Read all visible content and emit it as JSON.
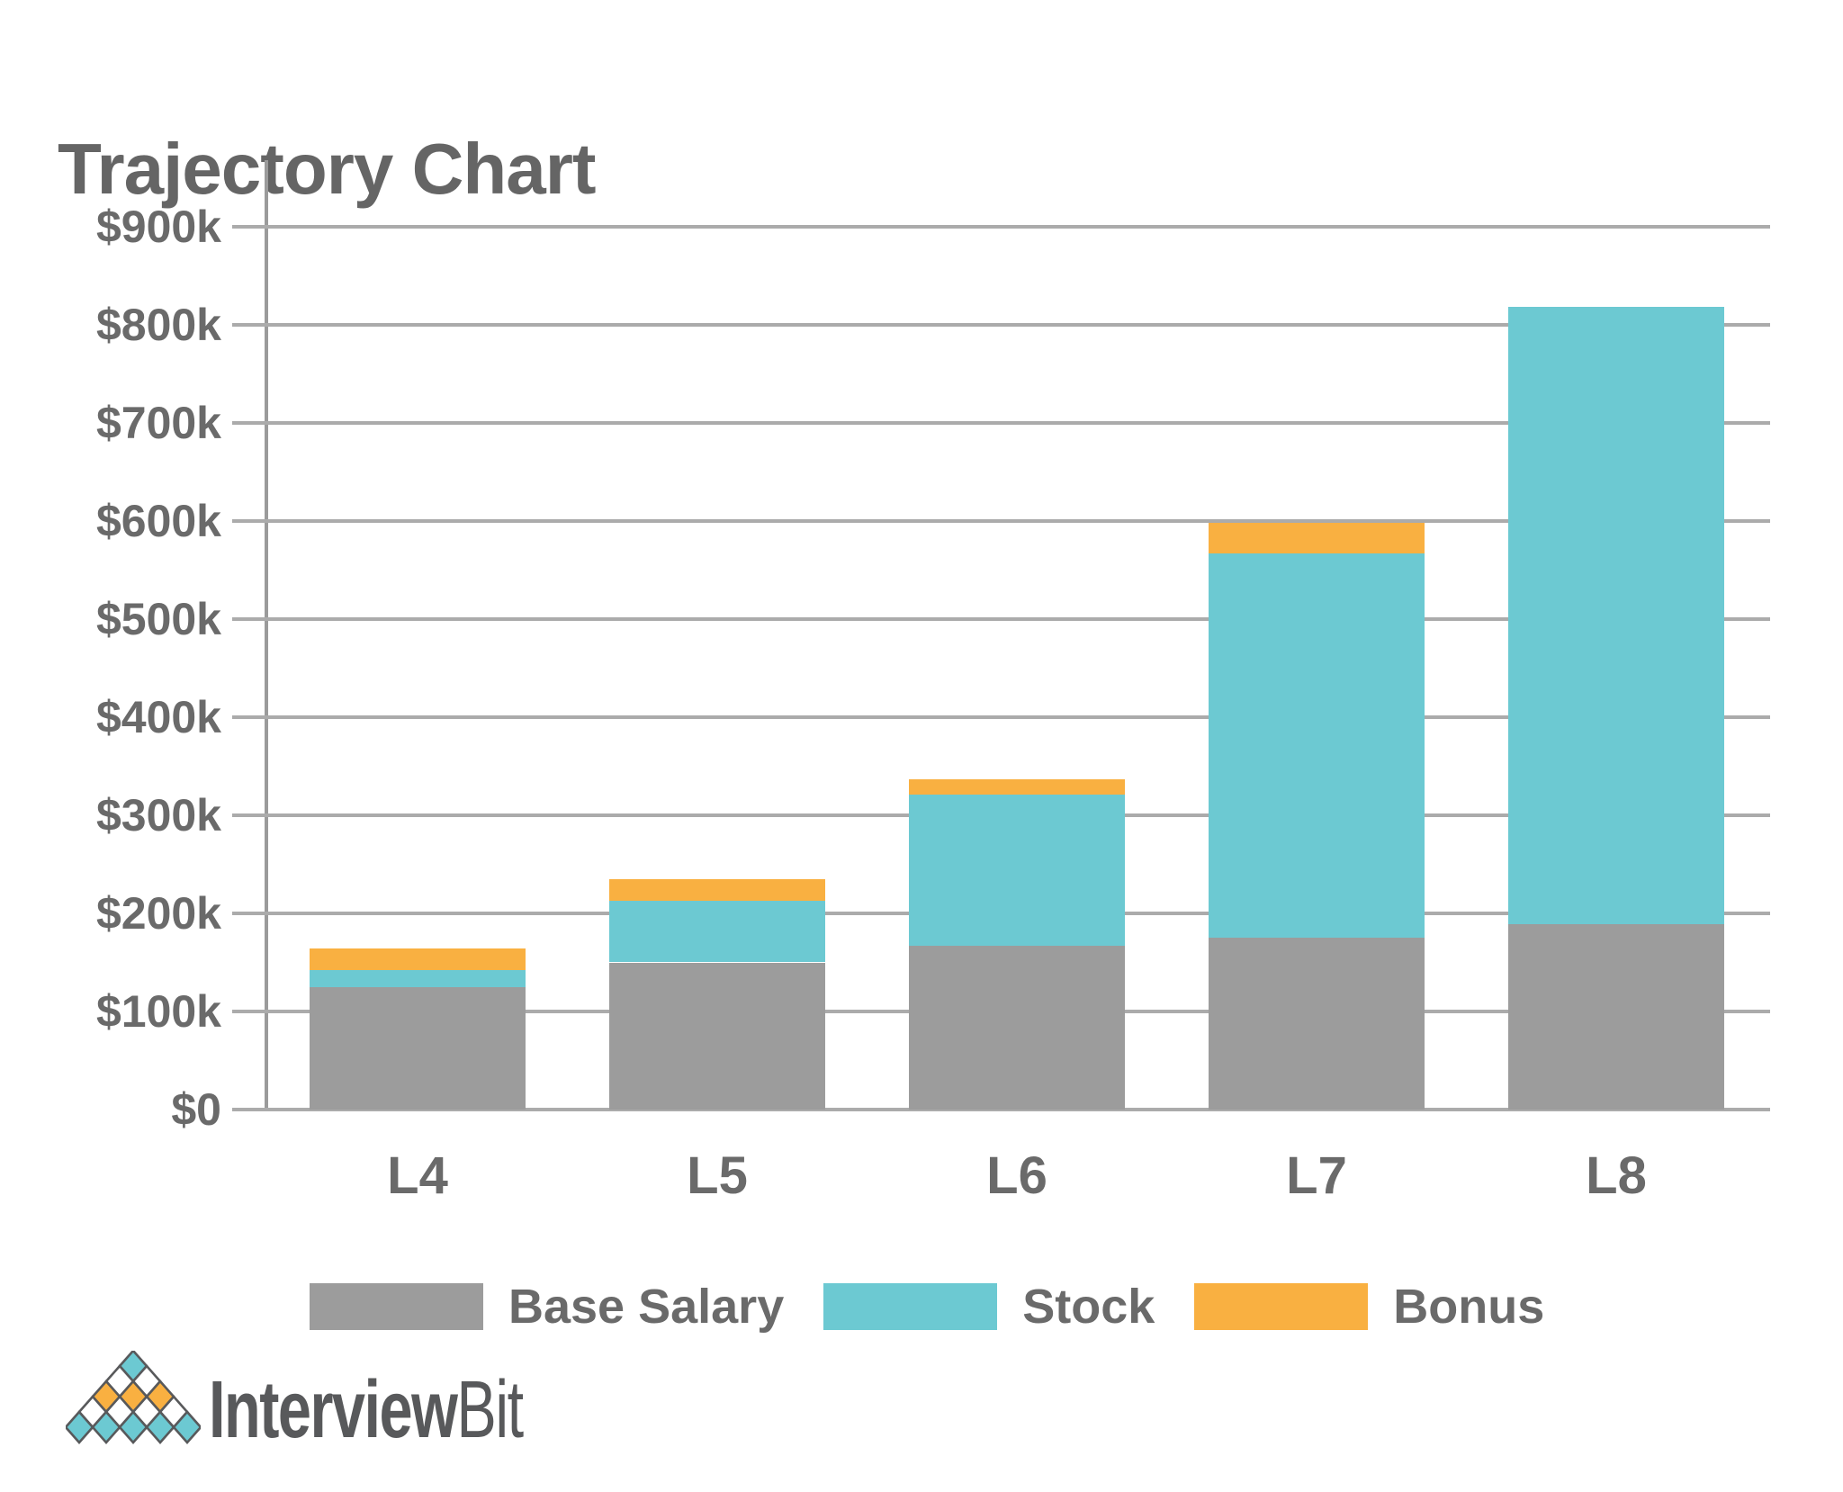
{
  "page": {
    "title": "Trajectory Chart"
  },
  "colors": {
    "base": "#9c9c9c",
    "stock": "#6cc9d2",
    "bonus": "#f9b041",
    "gridline": "#ababab",
    "axis": "#9b9b9b",
    "text": "#6a6a6a",
    "title": "#656565",
    "logo": "#58595b"
  },
  "chart_data": {
    "type": "bar",
    "stacked": true,
    "title": "Trajectory Chart",
    "xlabel": "",
    "ylabel": "",
    "unit": "USD thousands per year",
    "categories": [
      "L4",
      "L5",
      "L6",
      "L7",
      "L8"
    ],
    "series": [
      {
        "name": "Base Salary",
        "color": "#9c9c9c",
        "values": [
          125,
          150,
          167,
          175,
          189
        ]
      },
      {
        "name": "Stock",
        "color": "#6cc9d2",
        "values": [
          17,
          63,
          154,
          392,
          629
        ]
      },
      {
        "name": "Bonus",
        "color": "#f9b041",
        "values": [
          22,
          22,
          16,
          31,
          0
        ]
      }
    ],
    "totals_k": [
      164,
      235,
      337,
      598,
      818
    ],
    "y_axis": {
      "min": 0,
      "max": 900,
      "grid": true,
      "ticks": [
        {
          "value": 900,
          "label": "$900k"
        },
        {
          "value": 800,
          "label": "$800k"
        },
        {
          "value": 700,
          "label": "$700k"
        },
        {
          "value": 600,
          "label": "$600k"
        },
        {
          "value": 500,
          "label": "$500k"
        },
        {
          "value": 400,
          "label": "$400k"
        },
        {
          "value": 300,
          "label": "$300k"
        },
        {
          "value": 200,
          "label": "$200k"
        },
        {
          "value": 100,
          "label": "$100k"
        },
        {
          "value": 0,
          "label": "$0"
        }
      ]
    },
    "legend_position": "bottom"
  },
  "branding": {
    "wordmark_bold": "Interview",
    "wordmark_light": "Bit"
  }
}
